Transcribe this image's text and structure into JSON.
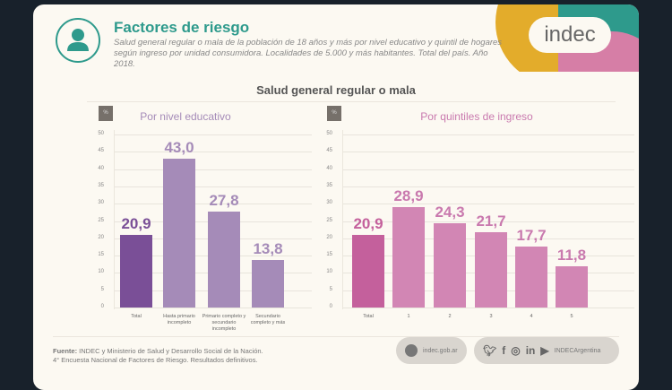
{
  "header": {
    "title": "Factores de riesgo",
    "subtitle": "Salud general regular o mala de la población de 18 años y más por nivel educativo y quintil de hogares según ingreso por unidad consumidora. Localidades de 5.000 y más habitantes. Total del país. Año 2018.",
    "logo_text": "indec"
  },
  "chart_data": [
    {
      "type": "bar",
      "title": "Por nivel educativo",
      "ylabel": "%",
      "ylim": [
        0,
        50
      ],
      "yticks": [
        0,
        5,
        10,
        15,
        20,
        25,
        30,
        35,
        40,
        45,
        50
      ],
      "categories": [
        "Total",
        "Hasta primario incompleto",
        "Primario completo y secundario incompleto",
        "Secundario completo y más"
      ],
      "values": [
        20.9,
        43.0,
        27.8,
        13.8
      ],
      "value_labels": [
        "20,9",
        "43,0",
        "27,8",
        "13,8"
      ],
      "colors": [
        "#7a4f97",
        "#a58bb8",
        "#a58bb8",
        "#a58bb8"
      ],
      "value_color": "#a58bb8",
      "grid": true
    },
    {
      "type": "bar",
      "title": "Por quintiles de ingreso",
      "ylabel": "%",
      "ylim": [
        0,
        50
      ],
      "yticks": [
        0,
        5,
        10,
        15,
        20,
        25,
        30,
        35,
        40,
        45,
        50
      ],
      "categories": [
        "Total",
        "1",
        "2",
        "3",
        "4",
        "5"
      ],
      "values": [
        20.9,
        28.9,
        24.3,
        21.7,
        17.7,
        11.8
      ],
      "value_labels": [
        "20,9",
        "28,9",
        "24,3",
        "21,7",
        "17,7",
        "11,8"
      ],
      "colors": [
        "#c4609c",
        "#d286b4",
        "#d286b4",
        "#d286b4",
        "#d286b4",
        "#d286b4"
      ],
      "value_color": "#c979ae",
      "grid": true
    }
  ],
  "main_title": "Salud general regular o mala",
  "footer": {
    "source_label": "Fuente:",
    "source_text": " INDEC y Ministerio de Salud y Desarrollo Social de la Nación.",
    "source_line2": "4° Encuesta Nacional de Factores de Riesgo. Resultados definitivos.",
    "website": "indec.gob.ar",
    "social_handle": "INDECArgentina",
    "social_icons": [
      "twitter-icon",
      "facebook-icon",
      "instagram-icon",
      "linkedin-icon",
      "youtube-icon"
    ]
  },
  "colors": {
    "teal": "#2e9a8c",
    "yellow": "#e3ac2b",
    "pink": "#d67ea6"
  }
}
